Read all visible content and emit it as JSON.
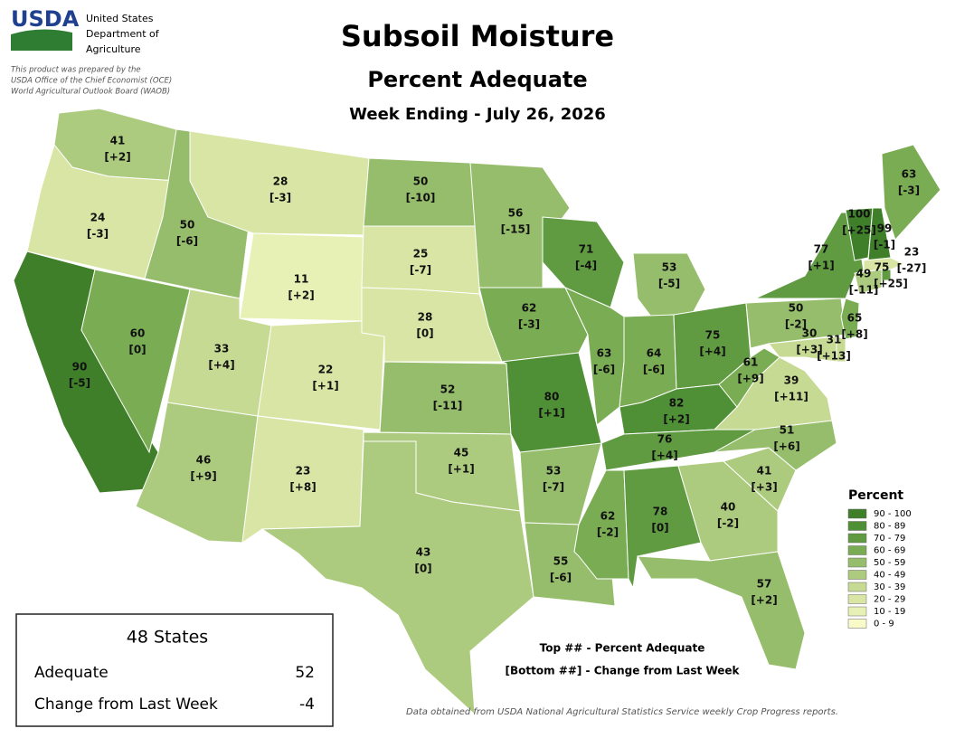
{
  "header": {
    "logo": "USDA",
    "agency": [
      "United States",
      "Department of",
      "Agriculture"
    ],
    "disclaimer": [
      "This product was prepared by the",
      "USDA Office of the Chief Economist (OCE)",
      "World Agricultural Outlook Board (WAOB)"
    ]
  },
  "title": "Subsoil Moisture",
  "subtitle": "Percent Adequate",
  "week": "Week Ending - July 26, 2026",
  "states": [
    {
      "value": 41,
      "change": "[+2]"
    },
    {
      "value": 24,
      "change": "[-3]"
    },
    {
      "value": 90,
      "change": "[-5]"
    },
    {
      "value": 50,
      "change": "[-6]"
    },
    {
      "value": 60,
      "change": "[0]"
    },
    {
      "value": 28,
      "change": "[-3]"
    },
    {
      "value": 11,
      "change": "[+2]"
    },
    {
      "value": 33,
      "change": "[+4]"
    },
    {
      "value": 46,
      "change": "[+9]"
    },
    {
      "value": 22,
      "change": "[+1]"
    },
    {
      "value": 23,
      "change": "[+8]"
    },
    {
      "value": 50,
      "change": "[-10]"
    },
    {
      "value": 25,
      "change": "[-7]"
    },
    {
      "value": 28,
      "change": "[0]"
    },
    {
      "value": 52,
      "change": "[-11]"
    },
    {
      "value": 45,
      "change": "[+1]"
    },
    {
      "value": 43,
      "change": "[0]"
    },
    {
      "value": 56,
      "change": "[-15]"
    },
    {
      "value": 62,
      "change": "[-3]"
    },
    {
      "value": 80,
      "change": "[+1]"
    },
    {
      "value": 53,
      "change": "[-7]"
    },
    {
      "value": 55,
      "change": "[-6]"
    },
    {
      "value": 71,
      "change": "[-4]"
    },
    {
      "value": 63,
      "change": "[-6]"
    },
    {
      "value": 53,
      "change": "[-5]"
    },
    {
      "value": 64,
      "change": "[-6]"
    },
    {
      "value": 75,
      "change": "[+4]"
    },
    {
      "value": 82,
      "change": "[+2]"
    },
    {
      "value": 76,
      "change": "[+4]"
    },
    {
      "value": 62,
      "change": "[-2]"
    },
    {
      "value": 78,
      "change": "[0]"
    },
    {
      "value": 40,
      "change": "[-2]"
    },
    {
      "value": 57,
      "change": "[+2]"
    },
    {
      "value": 41,
      "change": "[+3]"
    },
    {
      "value": 51,
      "change": "[+6]"
    },
    {
      "value": 39,
      "change": "[+11]"
    },
    {
      "value": 61,
      "change": "[+9]"
    },
    {
      "value": 50,
      "change": "[-2]"
    },
    {
      "value": 77,
      "change": "[+1]"
    },
    {
      "value": 100,
      "change": "[+25]"
    },
    {
      "value": 99,
      "change": "[-1]"
    },
    {
      "value": 63,
      "change": "[-3]"
    },
    {
      "value": 23,
      "change": "[-27]"
    },
    {
      "value": 75,
      "change": "[+25]"
    },
    {
      "value": 49,
      "change": "[-11]"
    },
    {
      "value": 65,
      "change": "[+8]"
    },
    {
      "value": 30,
      "change": "[+3]"
    },
    {
      "value": 31,
      "change": "[+13]"
    }
  ],
  "legend": {
    "title": "Percent",
    "bins": [
      {
        "range": [
          90,
          100
        ],
        "label": "90 - 100",
        "color": "#3f7f2a"
      },
      {
        "range": [
          80,
          89
        ],
        "label": "80 - 89",
        "color": "#4f8f35"
      },
      {
        "range": [
          70,
          79
        ],
        "label": "70 - 79",
        "color": "#609b41"
      },
      {
        "range": [
          60,
          69
        ],
        "label": "60 - 69",
        "color": "#7aac53"
      },
      {
        "range": [
          50,
          59
        ],
        "label": "50 - 59",
        "color": "#96bd6b"
      },
      {
        "range": [
          40,
          49
        ],
        "label": "40 - 49",
        "color": "#adcb7f"
      },
      {
        "range": [
          30,
          39
        ],
        "label": "30 - 39",
        "color": "#c6da93"
      },
      {
        "range": [
          20,
          29
        ],
        "label": "20 - 29",
        "color": "#d8e5a4"
      },
      {
        "range": [
          10,
          19
        ],
        "label": "10 - 19",
        "color": "#e8f1b5"
      },
      {
        "range": [
          0,
          9
        ],
        "label": "0 - 9",
        "color": "#f8fac8"
      }
    ]
  },
  "summary": {
    "title": "48 States",
    "adequate_label": "Adequate",
    "adequate": 52,
    "change_label": "Change from Last Week",
    "change": -4
  },
  "notes": [
    "Top ## - Percent Adequate",
    "[Bottom ##] - Change from Last Week"
  ],
  "source": "Data obtained from USDA National Agricultural Statistics Service weekly Crop Progress reports."
}
